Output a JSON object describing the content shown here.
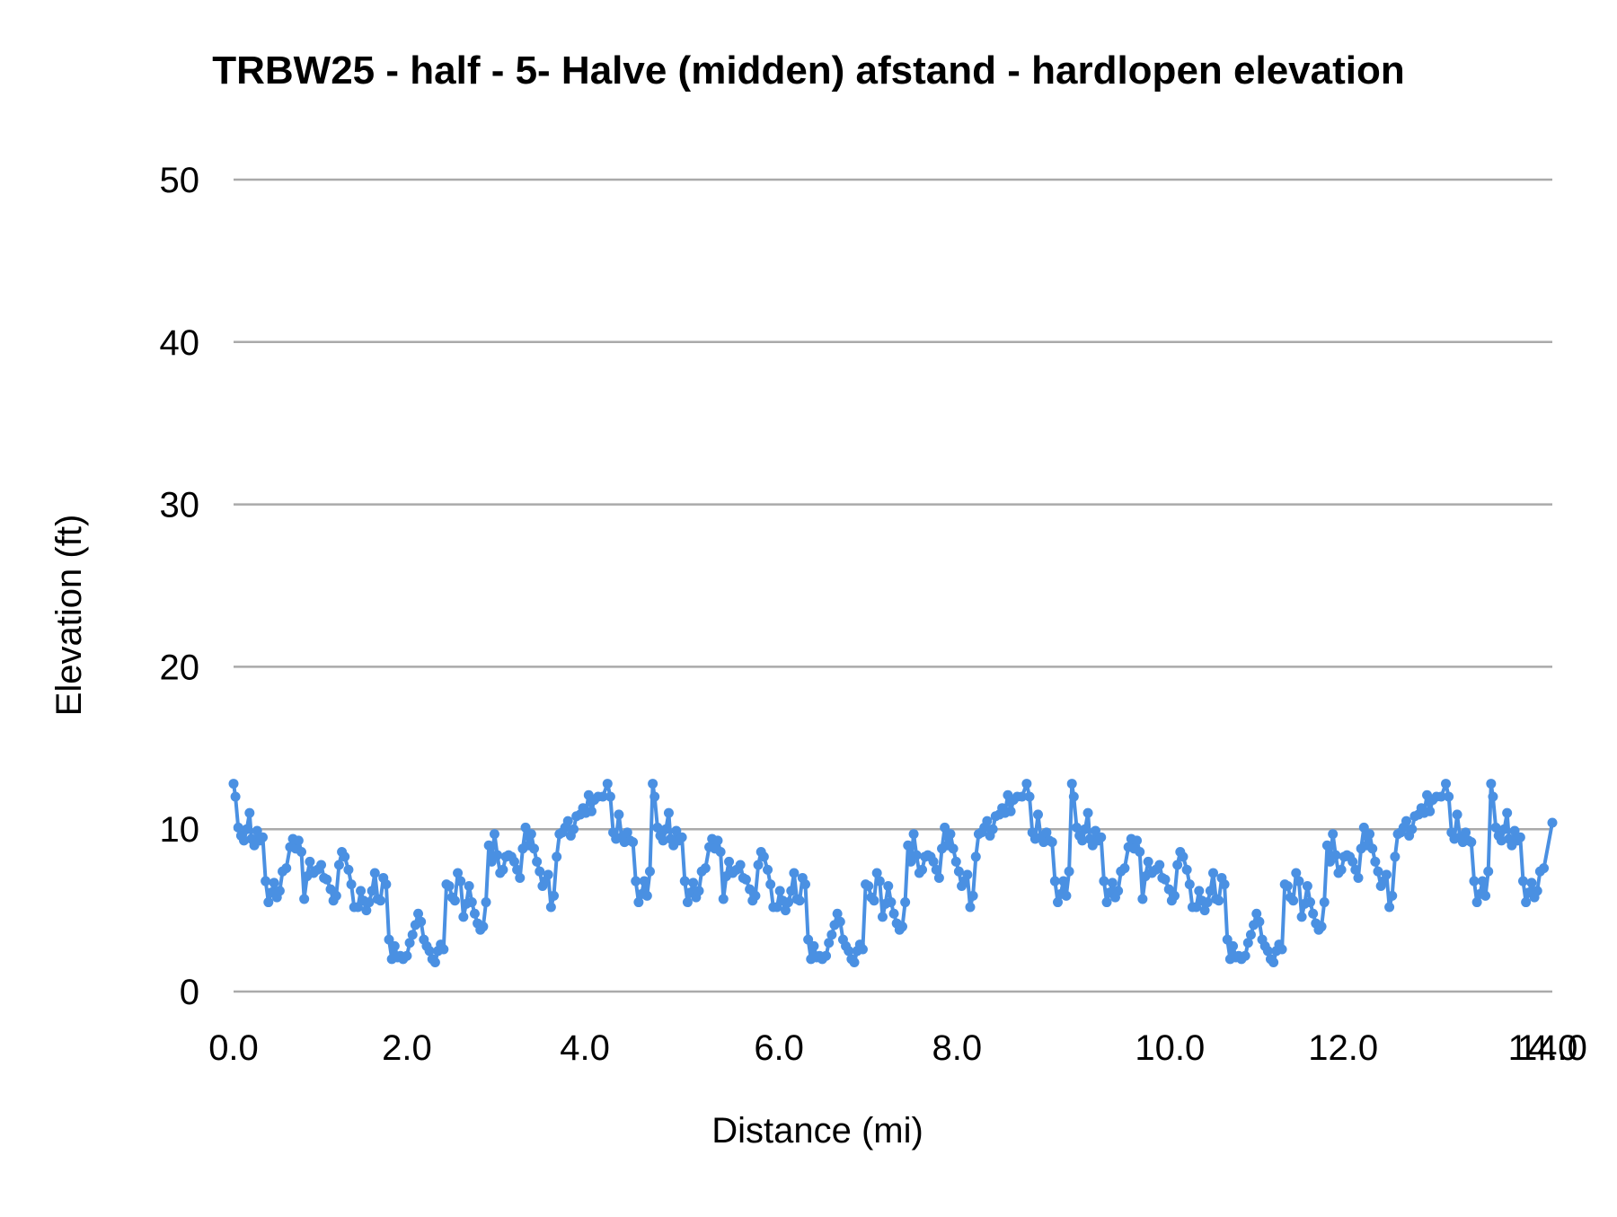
{
  "chart_data": {
    "type": "line",
    "title": "TRBW25 - half - 5- Halve (midden) afstand - hardlopen elevation",
    "xlabel": "Distance (mi)",
    "ylabel": "Elevation (ft)",
    "ylim": [
      0,
      50
    ],
    "xlim": [
      0,
      14
    ],
    "grid": true,
    "legend": "none",
    "y_ticks": [
      "0",
      "10",
      "20",
      "30",
      "40",
      "50"
    ],
    "x_ticks": [
      {
        "label": "0.0",
        "pos": 0.0
      },
      {
        "label": "2.0",
        "pos": 1.84
      },
      {
        "label": "4.0",
        "pos": 3.73
      },
      {
        "label": "6.0",
        "pos": 5.79
      },
      {
        "label": "8.0",
        "pos": 7.68
      },
      {
        "label": "10.0",
        "pos": 9.94
      },
      {
        "label": "12.0",
        "pos": 11.78
      },
      {
        "label": "14.0",
        "pos": 13.9
      },
      {
        "label": "14.0",
        "pos": 14.0
      }
    ],
    "series": [
      {
        "name": "Elevation",
        "color": "#4a90e2",
        "cycle_length_mi": 4.45,
        "cycle": [
          [
            0.0,
            12.8
          ],
          [
            0.02,
            12.0
          ],
          [
            0.05,
            10.1
          ],
          [
            0.08,
            9.6
          ],
          [
            0.11,
            9.3
          ],
          [
            0.14,
            10.0
          ],
          [
            0.17,
            11.0
          ],
          [
            0.19,
            9.4
          ],
          [
            0.22,
            9.0
          ],
          [
            0.25,
            9.9
          ],
          [
            0.28,
            9.3
          ],
          [
            0.31,
            9.5
          ],
          [
            0.34,
            6.8
          ],
          [
            0.37,
            5.5
          ],
          [
            0.4,
            6.1
          ],
          [
            0.43,
            6.7
          ],
          [
            0.46,
            5.8
          ],
          [
            0.49,
            6.2
          ],
          [
            0.52,
            7.4
          ],
          [
            0.56,
            7.6
          ],
          [
            0.6,
            8.9
          ],
          [
            0.63,
            9.4
          ],
          [
            0.66,
            8.8
          ],
          [
            0.69,
            9.3
          ],
          [
            0.72,
            8.6
          ],
          [
            0.75,
            5.7
          ],
          [
            0.78,
            7.1
          ],
          [
            0.81,
            8.0
          ],
          [
            0.85,
            7.3
          ],
          [
            0.89,
            7.5
          ],
          [
            0.93,
            7.8
          ],
          [
            0.96,
            7.0
          ],
          [
            0.99,
            6.9
          ],
          [
            1.03,
            6.3
          ],
          [
            1.06,
            5.6
          ],
          [
            1.09,
            5.9
          ],
          [
            1.12,
            7.8
          ],
          [
            1.15,
            8.6
          ],
          [
            1.18,
            8.3
          ],
          [
            1.22,
            7.5
          ],
          [
            1.25,
            6.6
          ],
          [
            1.28,
            5.2
          ],
          [
            1.32,
            5.2
          ],
          [
            1.35,
            6.2
          ],
          [
            1.38,
            5.6
          ],
          [
            1.41,
            5.0
          ],
          [
            1.44,
            5.5
          ],
          [
            1.47,
            6.2
          ],
          [
            1.5,
            7.3
          ],
          [
            1.53,
            5.7
          ],
          [
            1.56,
            5.6
          ],
          [
            1.59,
            7.0
          ],
          [
            1.62,
            6.6
          ],
          [
            1.65,
            3.2
          ],
          [
            1.68,
            2.0
          ],
          [
            1.71,
            2.8
          ],
          [
            1.74,
            2.1
          ],
          [
            1.77,
            2.2
          ],
          [
            1.8,
            2.0
          ],
          [
            1.84,
            2.2
          ],
          [
            1.87,
            3.0
          ],
          [
            1.9,
            3.5
          ],
          [
            1.93,
            4.1
          ],
          [
            1.96,
            4.8
          ],
          [
            1.99,
            4.3
          ],
          [
            2.02,
            3.2
          ],
          [
            2.05,
            2.8
          ],
          [
            2.08,
            2.5
          ],
          [
            2.11,
            2.0
          ],
          [
            2.14,
            1.8
          ],
          [
            2.17,
            2.5
          ],
          [
            2.2,
            2.9
          ],
          [
            2.23,
            2.6
          ],
          [
            2.26,
            6.6
          ],
          [
            2.29,
            6.5
          ],
          [
            2.32,
            5.8
          ],
          [
            2.35,
            5.6
          ],
          [
            2.38,
            7.3
          ],
          [
            2.41,
            6.8
          ],
          [
            2.44,
            4.6
          ],
          [
            2.47,
            5.4
          ],
          [
            2.5,
            6.5
          ],
          [
            2.53,
            5.5
          ],
          [
            2.56,
            4.8
          ],
          [
            2.59,
            4.2
          ],
          [
            2.62,
            3.8
          ],
          [
            2.65,
            4.0
          ],
          [
            2.68,
            5.5
          ],
          [
            2.71,
            9.0
          ],
          [
            2.74,
            8.0
          ],
          [
            2.77,
            9.7
          ],
          [
            2.8,
            8.4
          ],
          [
            2.83,
            7.3
          ],
          [
            2.86,
            7.5
          ],
          [
            2.89,
            8.3
          ],
          [
            2.92,
            8.4
          ],
          [
            2.95,
            8.3
          ],
          [
            2.98,
            8.0
          ],
          [
            3.01,
            7.5
          ],
          [
            3.04,
            7.0
          ],
          [
            3.07,
            8.8
          ],
          [
            3.1,
            10.1
          ],
          [
            3.13,
            9.0
          ],
          [
            3.16,
            9.7
          ],
          [
            3.19,
            8.8
          ],
          [
            3.22,
            8.0
          ],
          [
            3.25,
            7.4
          ],
          [
            3.28,
            6.5
          ],
          [
            3.31,
            6.8
          ],
          [
            3.34,
            7.2
          ],
          [
            3.37,
            5.2
          ],
          [
            3.4,
            5.9
          ],
          [
            3.43,
            8.3
          ],
          [
            3.46,
            9.7
          ],
          [
            3.49,
            9.8
          ],
          [
            3.52,
            10.1
          ],
          [
            3.55,
            10.5
          ],
          [
            3.58,
            9.6
          ],
          [
            3.61,
            10.0
          ],
          [
            3.64,
            10.8
          ],
          [
            3.68,
            10.9
          ],
          [
            3.71,
            11.3
          ],
          [
            3.74,
            11.0
          ],
          [
            3.77,
            12.1
          ],
          [
            3.8,
            11.1
          ],
          [
            3.83,
            11.8
          ],
          [
            3.87,
            12.0
          ],
          [
            3.92,
            12.0
          ],
          [
            3.97,
            12.8
          ],
          [
            4.0,
            12.0
          ],
          [
            4.03,
            9.8
          ],
          [
            4.06,
            9.4
          ],
          [
            4.09,
            10.9
          ],
          [
            4.12,
            9.5
          ],
          [
            4.15,
            9.2
          ],
          [
            4.18,
            9.8
          ],
          [
            4.21,
            9.3
          ],
          [
            4.24,
            9.2
          ],
          [
            4.27,
            6.8
          ],
          [
            4.3,
            5.5
          ],
          [
            4.33,
            6.0
          ],
          [
            4.36,
            6.8
          ],
          [
            4.39,
            5.9
          ],
          [
            4.42,
            7.4
          ]
        ],
        "end_point": [
          14.0,
          10.4
        ]
      }
    ]
  }
}
